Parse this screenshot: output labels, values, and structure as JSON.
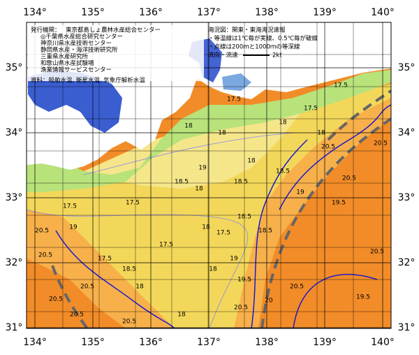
{
  "axes": {
    "lon_labels": [
      "134°",
      "135°",
      "136°",
      "137°",
      "138°",
      "139°",
      "140°"
    ],
    "lat_labels": [
      "35°",
      "34°",
      "33°",
      "32°",
      "31°"
    ]
  },
  "header": {
    "issuer_label": "発行機関：",
    "issuers": [
      "東京都島しょ農林水産総合センター",
      "◎千葉県水産総合研究センター",
      "神奈川県水産技術センター",
      "静岡県水産・海洋技術研究所",
      "三重県水産研究所",
      "和歌山県水産試験場",
      "漁業情報サービスセンター"
    ],
    "source": "資料：船舶水温, 衛星水温, 気象庁解析水温"
  },
  "legend": {
    "title": "海況図：関東・東海海況速報",
    "notes": [
      "・等温線は1℃毎が実線、0.5℃毎が破線",
      "・点線は200ｍと1000ｍの等深線"
    ],
    "flow_label": "流向・流速",
    "flow_unit": "2kt"
  },
  "contour_labels": [
    17.5,
    17.5,
    17.5,
    18,
    18,
    18,
    18,
    18,
    19,
    18.5,
    18.5,
    18,
    17.5,
    17.5,
    18.5,
    19,
    20.5,
    20.5,
    20.5,
    19.5,
    20.5,
    20.5,
    19,
    17.5,
    17.5,
    18,
    17.5,
    18.5,
    19,
    18,
    18.5,
    19.5,
    20,
    20.5,
    19.5,
    20.5,
    20.5,
    20.5,
    18.5,
    18,
    20.5,
    20.5,
    18,
    20.5
  ]
}
